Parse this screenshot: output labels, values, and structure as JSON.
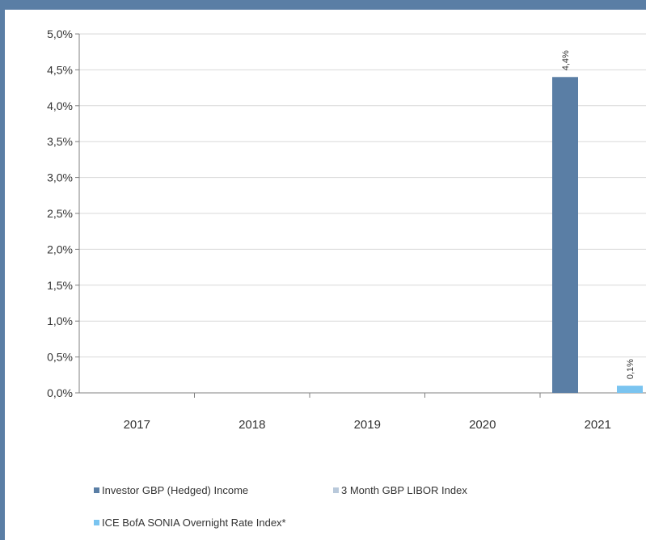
{
  "chart_data": {
    "type": "bar",
    "categories": [
      "2017",
      "2018",
      "2019",
      "2020",
      "2021"
    ],
    "series": [
      {
        "name": "Investor GBP (Hedged) Income",
        "values": [
          null,
          null,
          null,
          null,
          4.4
        ],
        "color": "#5a7ea5",
        "data_labels": [
          "",
          "",
          "",
          "",
          "4,4%"
        ]
      },
      {
        "name": "3 Month GBP LIBOR Index",
        "values": [
          null,
          null,
          null,
          null,
          null
        ],
        "color": "#b9c9db",
        "data_labels": [
          "",
          "",
          "",
          "",
          ""
        ]
      },
      {
        "name": "ICE BofA SONIA Overnight Rate Index*",
        "values": [
          null,
          null,
          null,
          null,
          0.1
        ],
        "color": "#7ac4f0",
        "data_labels": [
          "",
          "",
          "",
          "",
          "0,1%"
        ]
      }
    ],
    "ylim": [
      0,
      5
    ],
    "yticks": [
      0,
      0.5,
      1,
      1.5,
      2,
      2.5,
      3,
      3.5,
      4,
      4.5,
      5
    ],
    "ytick_labels": [
      "0,0%",
      "0,5%",
      "1,0%",
      "1,5%",
      "2,0%",
      "2,5%",
      "3,0%",
      "3,5%",
      "4,0%",
      "4,5%",
      "5,0%"
    ],
    "grid": true,
    "legend_position": "bottom"
  },
  "legend": {
    "item1": "Investor GBP (Hedged) Income",
    "item2": "3 Month GBP LIBOR Index",
    "item3": "ICE BofA SONIA Overnight Rate Index*"
  },
  "colors": {
    "frame": "#5a7ea5",
    "gridline": "#d9d9d9",
    "axis": "#808080",
    "text": "#333333"
  }
}
